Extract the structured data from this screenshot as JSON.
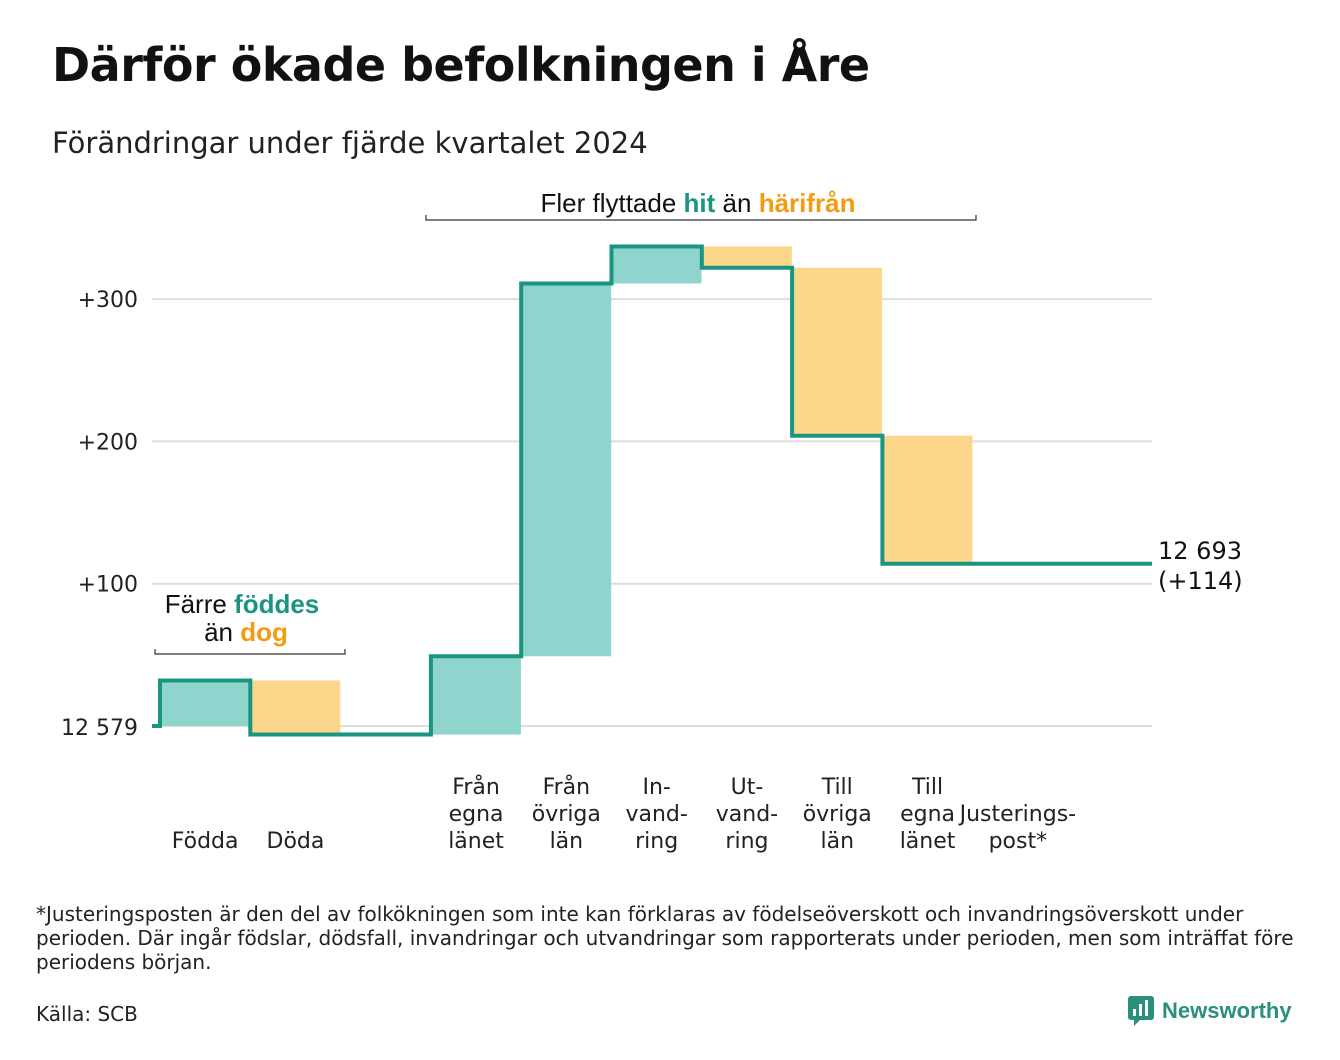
{
  "title": "Därför ökade befolkningen i Åre",
  "subtitle": "Förändringar under fjärde kvartalet 2024",
  "colors": {
    "increase": "#8fd5cd",
    "decrease": "#fbd68b",
    "step_line": "#1a9680",
    "accent_teal": "#1a9680",
    "accent_orange": "#f29c12",
    "grid": "#dddddd"
  },
  "chart_data": {
    "type": "waterfall",
    "baseline_value": 12579,
    "baseline_label": "12 579",
    "y_tick_labels": [
      "+300",
      "+200",
      "+100"
    ],
    "y_ticks": [
      300,
      200,
      100
    ],
    "ylim": [
      -10,
      345
    ],
    "grid": true,
    "steps": [
      {
        "label_lines": [
          "Födda"
        ],
        "change": 32,
        "kind": "increase"
      },
      {
        "label_lines": [
          "Döda"
        ],
        "change": -38,
        "kind": "decrease"
      },
      {
        "label_lines": [
          ""
        ],
        "change": 0,
        "kind": "none"
      },
      {
        "label_lines": [
          "Från",
          "egna",
          "länet"
        ],
        "change": 55,
        "kind": "increase"
      },
      {
        "label_lines": [
          "Från",
          "övriga",
          "län"
        ],
        "change": 262,
        "kind": "increase"
      },
      {
        "label_lines": [
          "In-",
          "vand-",
          "ring"
        ],
        "change": 26,
        "kind": "increase"
      },
      {
        "label_lines": [
          "Ut-",
          "vand-",
          "ring"
        ],
        "change": -15,
        "kind": "decrease"
      },
      {
        "label_lines": [
          "Till",
          "övriga",
          "län"
        ],
        "change": -118,
        "kind": "decrease"
      },
      {
        "label_lines": [
          "Till",
          "egna",
          "länet"
        ],
        "change": -90,
        "kind": "decrease"
      },
      {
        "label_lines": [
          "Justerings-",
          "post*"
        ],
        "change": 0,
        "kind": "none"
      }
    ],
    "end_label_line1": "12 693",
    "end_label_line2": "(+114)",
    "annotations": {
      "births": {
        "line1_pre": "Färre ",
        "line1_hl": "föddes",
        "line2_pre": "än ",
        "line2_hl": "dog"
      },
      "migration": {
        "pre": "Fler flyttade ",
        "hl1": "hit",
        "mid": " än ",
        "hl2": "härifrån"
      }
    }
  },
  "footnote": "*Justeringsposten är den del av folkökningen som inte kan förklaras av födelseöverskott och invandringsöverskott under perioden. Där ingår födslar, dödsfall, invandringar och utvandringar som rapporterats under perioden, men som inträffat före periodens början.",
  "source": "Källa: SCB",
  "brand": "Newsworthy",
  "logo_icon": "bar-chart-speech-bubble-icon"
}
